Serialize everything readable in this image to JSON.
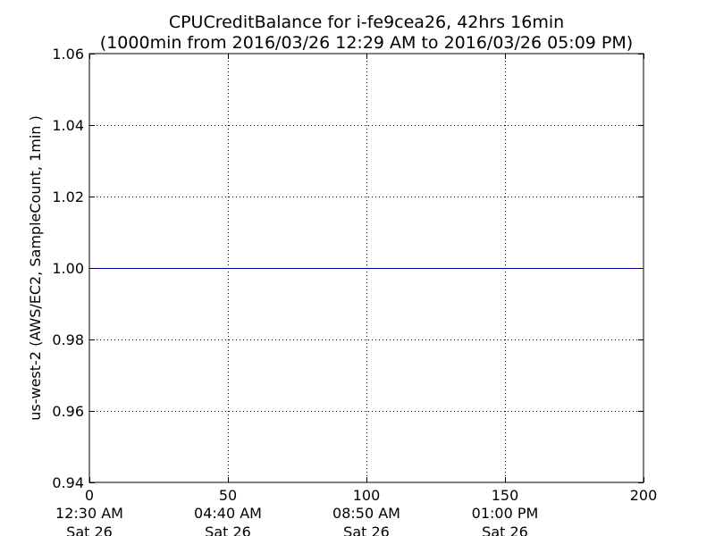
{
  "chart_data": {
    "type": "line",
    "title_line1": "CPUCreditBalance for i-fe9cea26, 42hrs 16min",
    "title_line2": "(1000min from 2016/03/26 12:29 AM to 2016/03/26 05:09 PM)",
    "ylabel": "us-west-2 (AWS/EC2, SampleCount, 1min )",
    "xlabel": "",
    "xlim": [
      0,
      200
    ],
    "ylim": [
      0.94,
      1.06
    ],
    "grid": true,
    "x_ticks": [
      {
        "value": 0,
        "label": "0",
        "time": "12:30 AM",
        "day": "Sat 26"
      },
      {
        "value": 50,
        "label": "50",
        "time": "04:40 AM",
        "day": "Sat 26"
      },
      {
        "value": 100,
        "label": "100",
        "time": "08:50 AM",
        "day": "Sat 26"
      },
      {
        "value": 150,
        "label": "150",
        "time": "01:00 PM",
        "day": "Sat 26"
      },
      {
        "value": 200,
        "label": "200",
        "time": "",
        "day": ""
      }
    ],
    "y_ticks": [
      {
        "value": 0.94,
        "label": "0.94"
      },
      {
        "value": 0.96,
        "label": "0.96"
      },
      {
        "value": 0.98,
        "label": "0.98"
      },
      {
        "value": 1.0,
        "label": "1.00"
      },
      {
        "value": 1.02,
        "label": "1.02"
      },
      {
        "value": 1.04,
        "label": "1.04"
      },
      {
        "value": 1.06,
        "label": "1.06"
      }
    ],
    "series": [
      {
        "color": "#0000aa",
        "x": [
          0,
          200
        ],
        "y": [
          1.0,
          1.0
        ]
      }
    ]
  }
}
